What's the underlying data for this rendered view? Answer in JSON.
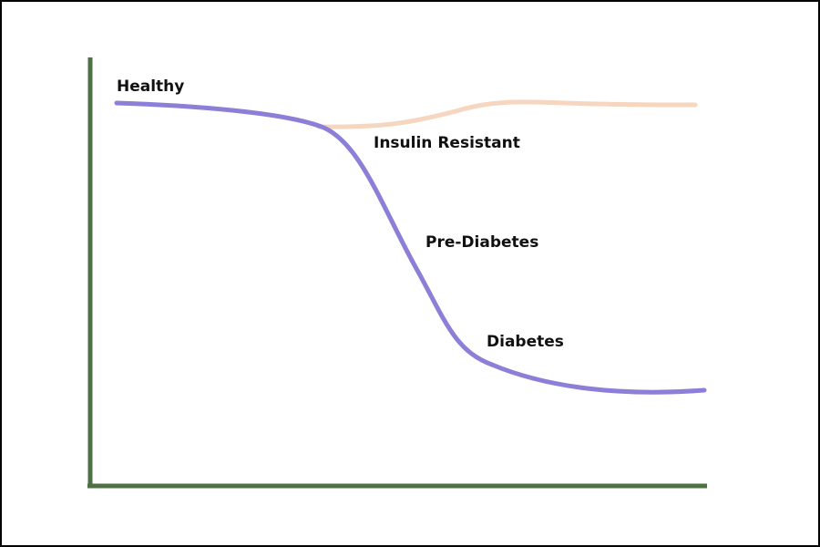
{
  "labels": {
    "healthy": "Healthy",
    "insulin_resistant": "Insulin Resistant",
    "pre_diabetes": "Pre-Diabetes",
    "diabetes": "Diabetes"
  }
}
